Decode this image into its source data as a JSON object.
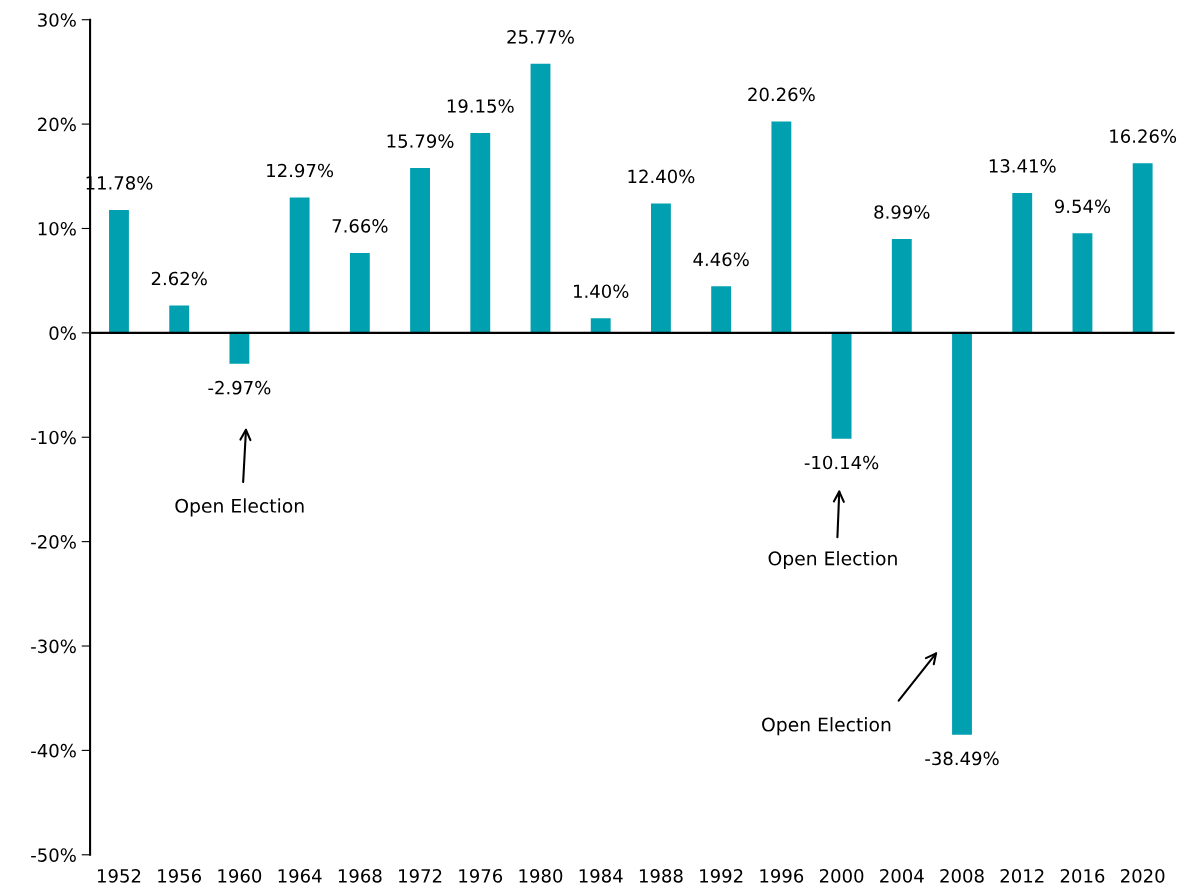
{
  "chart_data": {
    "type": "bar",
    "categories": [
      "1952",
      "1956",
      "1960",
      "1964",
      "1968",
      "1972",
      "1976",
      "1980",
      "1984",
      "1988",
      "1992",
      "1996",
      "2000",
      "2004",
      "2008",
      "2012",
      "2016",
      "2020"
    ],
    "values": [
      11.78,
      2.62,
      -2.97,
      12.97,
      7.66,
      15.79,
      19.15,
      25.77,
      1.4,
      12.4,
      4.46,
      20.26,
      -10.14,
      8.99,
      -38.49,
      13.41,
      9.54,
      16.26
    ],
    "value_labels": [
      "11.78%",
      "2.62%",
      "-2.97%",
      "12.97%",
      "7.66%",
      "15.79%",
      "19.15%",
      "25.77%",
      "1.40%",
      "12.40%",
      "4.46%",
      "20.26%",
      "-10.14%",
      "8.99%",
      "-38.49%",
      "13.41%",
      "9.54%",
      "16.26%"
    ],
    "color": "#00a0b0",
    "ylim": [
      -50,
      30
    ],
    "yticks": [
      {
        "value": -50,
        "label": "-50%"
      },
      {
        "value": -40,
        "label": "-40%"
      },
      {
        "value": -30,
        "label": "-30%"
      },
      {
        "value": -20,
        "label": "-20%"
      },
      {
        "value": -10,
        "label": "-10%"
      },
      {
        "value": 0,
        "label": "0%"
      },
      {
        "value": 10,
        "label": "10%"
      },
      {
        "value": 20,
        "label": "20%"
      },
      {
        "value": 30,
        "label": "30%"
      }
    ],
    "annotations": [
      "Open Election",
      "Open Election",
      "Open Election"
    ]
  }
}
